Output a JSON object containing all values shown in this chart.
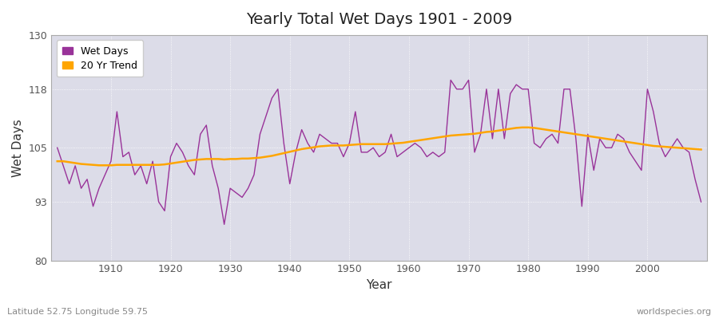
{
  "title": "Yearly Total Wet Days 1901 - 2009",
  "xlabel": "Year",
  "ylabel": "Wet Days",
  "subtitle_left": "Latitude 52.75 Longitude 59.75",
  "subtitle_right": "worldspecies.org",
  "ylim": [
    80,
    130
  ],
  "xlim": [
    1900,
    2010
  ],
  "yticks": [
    80,
    93,
    105,
    118,
    130
  ],
  "xticks": [
    1910,
    1920,
    1930,
    1940,
    1950,
    1960,
    1970,
    1980,
    1990,
    2000
  ],
  "wet_days_color": "#993399",
  "trend_color": "#FFA500",
  "fig_bg_color": "#ffffff",
  "plot_bg_color": "#dcdce8",
  "grid_color": "#ffffff",
  "years": [
    1901,
    1902,
    1903,
    1904,
    1905,
    1906,
    1907,
    1908,
    1909,
    1910,
    1911,
    1912,
    1913,
    1914,
    1915,
    1916,
    1917,
    1918,
    1919,
    1920,
    1921,
    1922,
    1923,
    1924,
    1925,
    1926,
    1927,
    1928,
    1929,
    1930,
    1931,
    1932,
    1933,
    1934,
    1935,
    1936,
    1937,
    1938,
    1939,
    1940,
    1941,
    1942,
    1943,
    1944,
    1945,
    1946,
    1947,
    1948,
    1949,
    1950,
    1951,
    1952,
    1953,
    1954,
    1955,
    1956,
    1957,
    1958,
    1959,
    1960,
    1961,
    1962,
    1963,
    1964,
    1965,
    1966,
    1967,
    1968,
    1969,
    1970,
    1971,
    1972,
    1973,
    1974,
    1975,
    1976,
    1977,
    1978,
    1979,
    1980,
    1981,
    1982,
    1983,
    1984,
    1985,
    1986,
    1987,
    1988,
    1989,
    1990,
    1991,
    1992,
    1993,
    1994,
    1995,
    1996,
    1997,
    1998,
    1999,
    2000,
    2001,
    2002,
    2003,
    2004,
    2005,
    2006,
    2007,
    2008,
    2009
  ],
  "wet_days": [
    105,
    101,
    97,
    101,
    96,
    98,
    92,
    96,
    99,
    102,
    113,
    103,
    104,
    99,
    101,
    97,
    102,
    93,
    91,
    103,
    106,
    104,
    101,
    99,
    108,
    110,
    101,
    96,
    88,
    96,
    95,
    94,
    96,
    99,
    108,
    112,
    116,
    118,
    106,
    97,
    104,
    109,
    106,
    104,
    108,
    107,
    106,
    106,
    103,
    106,
    113,
    104,
    104,
    105,
    103,
    104,
    108,
    103,
    104,
    105,
    106,
    105,
    103,
    104,
    103,
    104,
    120,
    118,
    118,
    120,
    104,
    108,
    118,
    107,
    118,
    107,
    117,
    119,
    118,
    118,
    106,
    105,
    107,
    108,
    106,
    118,
    118,
    107,
    92,
    108,
    100,
    107,
    105,
    105,
    108,
    107,
    104,
    102,
    100,
    118,
    113,
    106,
    103,
    105,
    107,
    105,
    104,
    98,
    93
  ],
  "trend": [
    102.0,
    102.0,
    101.8,
    101.6,
    101.4,
    101.3,
    101.2,
    101.1,
    101.1,
    101.1,
    101.2,
    101.2,
    101.2,
    101.2,
    101.2,
    101.2,
    101.2,
    101.2,
    101.3,
    101.5,
    101.7,
    101.9,
    102.1,
    102.3,
    102.4,
    102.5,
    102.5,
    102.5,
    102.4,
    102.5,
    102.5,
    102.6,
    102.6,
    102.7,
    102.8,
    103.0,
    103.2,
    103.5,
    103.8,
    104.1,
    104.4,
    104.7,
    104.9,
    105.1,
    105.3,
    105.4,
    105.5,
    105.5,
    105.5,
    105.6,
    105.7,
    105.8,
    105.8,
    105.8,
    105.8,
    105.8,
    105.9,
    106.0,
    106.1,
    106.3,
    106.5,
    106.7,
    106.9,
    107.1,
    107.3,
    107.5,
    107.7,
    107.8,
    107.9,
    108.0,
    108.1,
    108.3,
    108.5,
    108.6,
    108.8,
    109.0,
    109.2,
    109.4,
    109.5,
    109.5,
    109.4,
    109.2,
    109.0,
    108.8,
    108.6,
    108.4,
    108.2,
    108.0,
    107.8,
    107.6,
    107.4,
    107.2,
    107.0,
    106.8,
    106.6,
    106.4,
    106.2,
    106.0,
    105.8,
    105.6,
    105.4,
    105.3,
    105.2,
    105.1,
    105.0,
    104.9,
    104.8,
    104.7,
    104.6
  ]
}
